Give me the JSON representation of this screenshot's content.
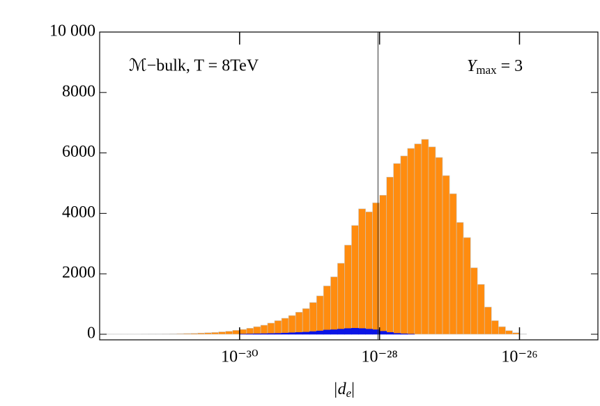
{
  "chart_data": {
    "type": "histogram",
    "annotation_left": "ℳ−bulk, T = 8TeV",
    "annotation_right": {
      "base": "Y",
      "sub": "max",
      "rest": " = 3"
    },
    "x_label": {
      "base": "|d",
      "sub": "e",
      "rest": "|"
    },
    "xscale": "log",
    "bins": [
      1e-32,
      1.26e-32,
      1.58e-32,
      2e-32,
      2.51e-32,
      3.16e-32,
      3.98e-32,
      5.01e-32,
      6.31e-32,
      7.94e-32,
      1e-31,
      1.26e-31,
      1.58e-31,
      2e-31,
      2.51e-31,
      3.16e-31,
      3.98e-31,
      5.01e-31,
      6.31e-31,
      7.94e-31,
      1e-30,
      1.26e-30,
      1.58e-30,
      2e-30,
      2.51e-30,
      3.16e-30,
      3.98e-30,
      5.01e-30,
      6.31e-30,
      7.94e-30,
      1e-29,
      1.26e-29,
      1.58e-29,
      2e-29,
      2.51e-29,
      3.16e-29,
      3.98e-29,
      5.01e-29,
      6.31e-29,
      7.94e-29,
      1e-28,
      1.26e-28,
      1.58e-28,
      2e-28,
      2.51e-28,
      3.16e-28,
      3.98e-28,
      5.01e-28,
      6.31e-28,
      7.94e-28,
      1e-27,
      1.26e-27,
      1.58e-27,
      2e-27,
      2.51e-27,
      3.16e-27,
      3.98e-27,
      5.01e-27,
      6.31e-27,
      7.94e-27,
      1e-26,
      1.26e-26
    ],
    "series": [
      {
        "color": "#ff8c0f",
        "values": [
          5,
          5,
          5,
          5,
          5,
          5,
          8,
          10,
          10,
          12,
          15,
          20,
          25,
          30,
          40,
          50,
          60,
          80,
          100,
          130,
          160,
          200,
          250,
          300,
          370,
          450,
          530,
          620,
          730,
          850,
          1050,
          1270,
          1600,
          1900,
          2350,
          2950,
          3600,
          4150,
          4050,
          4350,
          4600,
          5200,
          5650,
          5900,
          6150,
          6300,
          6450,
          6200,
          5850,
          5250,
          4650,
          3700,
          3200,
          2200,
          1650,
          900,
          450,
          250,
          120,
          50,
          10
        ]
      },
      {
        "color": "#0a14e6",
        "values": [
          0,
          0,
          0,
          0,
          0,
          0,
          0,
          0,
          0,
          0,
          0,
          0,
          0,
          0,
          0,
          0,
          0,
          0,
          0,
          0,
          5,
          10,
          15,
          20,
          25,
          30,
          40,
          50,
          60,
          70,
          90,
          110,
          140,
          150,
          170,
          190,
          200,
          190,
          170,
          150,
          100,
          60,
          30,
          15,
          5,
          0,
          0,
          0,
          0,
          0,
          0,
          0,
          0,
          0,
          0,
          0,
          0,
          0,
          0,
          0,
          0
        ]
      }
    ],
    "vline": 9.5e-29,
    "xlim": [
      1e-32,
      1.32e-25
    ],
    "xticks": [
      {
        "value": 1e-30,
        "label": "10⁻³⁰"
      },
      {
        "value": 1e-28,
        "label": "10⁻²⁸"
      },
      {
        "value": 1e-26,
        "label": "10⁻²⁶"
      }
    ],
    "ylim": [
      -185,
      10000
    ],
    "yticks": [
      0,
      2000,
      4000,
      6000,
      8000,
      {
        "value": 10000,
        "label": "10 000"
      }
    ]
  }
}
